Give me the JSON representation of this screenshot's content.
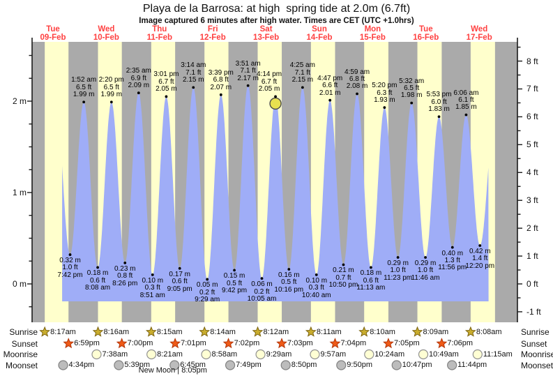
{
  "colors": {
    "day_band": "#ffffcc",
    "night_band": "#aaaaaa",
    "tide_fill": "#9fadf7",
    "axis": "#1a1a1a",
    "day_label_red": "#ff4040",
    "current_marker_fill": "#e8e050",
    "current_marker_stroke": "#4a4a4a",
    "sunrise_star_fill": "#c9ad2e",
    "sunrise_star_stroke": "#7c6410",
    "sunset_star_fill": "#ef5a17",
    "sunset_star_stroke": "#b23408",
    "moonrise_fill": "#ffffd4",
    "moonrise_stroke": "#909090",
    "moonset_fill": "#bcbcbc",
    "moonset_stroke": "#808080"
  },
  "chart_data": {
    "type": "area",
    "title": "Playa de la Barrosa: at high  spring tide at 2.0m (6.7ft)",
    "subtitle": "Image captured 6 minutes after high water. Times are CET (UTC +1.0hrs)",
    "ylabel_left_unit": "m",
    "ylabel_right_unit": "ft",
    "ylim_m": [
      -0.28,
      2.65
    ],
    "y_ticks_m": [
      "2 m",
      "1 m",
      "0 m"
    ],
    "y_tick_values_m": [
      2,
      1,
      0
    ],
    "y_ticks_ft": [
      "8 ft",
      "7 ft",
      "6 ft",
      "5 ft",
      "4 ft",
      "3 ft",
      "2 ft",
      "1 ft",
      "0 ft",
      "-1 ft"
    ],
    "y_tick_values_ft": [
      8,
      7,
      6,
      5,
      4,
      3,
      2,
      1,
      0,
      -1
    ],
    "days": [
      {
        "name": "Tue",
        "date": "09-Feb"
      },
      {
        "name": "Wed",
        "date": "10-Feb"
      },
      {
        "name": "Thu",
        "date": "11-Feb"
      },
      {
        "name": "Fri",
        "date": "12-Feb"
      },
      {
        "name": "Sat",
        "date": "13-Feb"
      },
      {
        "name": "Sun",
        "date": "14-Feb"
      },
      {
        "name": "Mon",
        "date": "15-Feb"
      },
      {
        "name": "Tue",
        "date": "16-Feb"
      },
      {
        "name": "Wed",
        "date": "17-Feb"
      }
    ],
    "events": [
      {
        "kind": "low",
        "time": "7:42 pm",
        "m": "0.32 m",
        "ft": "1.0 ft",
        "t": 19.7,
        "h": 0.32
      },
      {
        "kind": "high",
        "time": "1:52 am",
        "m": "1.99 m",
        "ft": "6.5 ft",
        "t": 25.87,
        "h": 1.99
      },
      {
        "kind": "low",
        "time": "8:08 am",
        "m": "0.18 m",
        "ft": "0.6 ft",
        "t": 32.13,
        "h": 0.18
      },
      {
        "kind": "high",
        "time": "2:20 pm",
        "m": "1.99 m",
        "ft": "6.5 ft",
        "t": 38.33,
        "h": 1.99
      },
      {
        "kind": "low",
        "time": "8:26 pm",
        "m": "0.23 m",
        "ft": "0.8 ft",
        "t": 44.43,
        "h": 0.23
      },
      {
        "kind": "high",
        "time": "2:35 am",
        "m": "2.09 m",
        "ft": "6.9 ft",
        "t": 50.58,
        "h": 2.09
      },
      {
        "kind": "low",
        "time": "8:51 am",
        "m": "0.10 m",
        "ft": "0.3 ft",
        "t": 56.85,
        "h": 0.1
      },
      {
        "kind": "high",
        "time": "3:01 pm",
        "m": "2.05 m",
        "ft": "6.7 ft",
        "t": 63.02,
        "h": 2.05
      },
      {
        "kind": "low",
        "time": "9:05 pm",
        "m": "0.17 m",
        "ft": "0.6 ft",
        "t": 69.08,
        "h": 0.17
      },
      {
        "kind": "high",
        "time": "3:14 am",
        "m": "2.15 m",
        "ft": "7.1 ft",
        "t": 75.23,
        "h": 2.15
      },
      {
        "kind": "low",
        "time": "9:29 am",
        "m": "0.05 m",
        "ft": "0.2 ft",
        "t": 81.48,
        "h": 0.05
      },
      {
        "kind": "high",
        "time": "3:39 pm",
        "m": "2.07 m",
        "ft": "6.8 ft",
        "t": 87.65,
        "h": 2.07
      },
      {
        "kind": "low",
        "time": "9:42 pm",
        "m": "0.15 m",
        "ft": "0.5 ft",
        "t": 93.7,
        "h": 0.15
      },
      {
        "kind": "high",
        "time": "3:51 am",
        "m": "2.17 m",
        "ft": "7.1 ft",
        "t": 99.85,
        "h": 2.17
      },
      {
        "kind": "low",
        "time": "10:05 am",
        "m": "0.06 m",
        "ft": "0.2 ft",
        "t": 106.08,
        "h": 0.06
      },
      {
        "kind": "high",
        "time": "4:14 pm",
        "m": "2.05 m",
        "ft": "6.7 ft",
        "t": 112.23,
        "h": 2.05,
        "current": true
      },
      {
        "kind": "low",
        "time": "10:16 pm",
        "m": "0.16 m",
        "ft": "0.5 ft",
        "t": 118.27,
        "h": 0.16
      },
      {
        "kind": "high",
        "time": "4:25 am",
        "m": "2.15 m",
        "ft": "7.1 ft",
        "t": 124.42,
        "h": 2.15
      },
      {
        "kind": "low",
        "time": "10:40 am",
        "m": "0.10 m",
        "ft": "0.3 ft",
        "t": 130.67,
        "h": 0.1
      },
      {
        "kind": "high",
        "time": "4:47 pm",
        "m": "2.01 m",
        "ft": "6.6 ft",
        "t": 136.78,
        "h": 2.01
      },
      {
        "kind": "low",
        "time": "10:50 pm",
        "m": "0.21 m",
        "ft": "0.7 ft",
        "t": 142.83,
        "h": 0.21
      },
      {
        "kind": "high",
        "time": "4:59 am",
        "m": "2.08 m",
        "ft": "6.8 ft",
        "t": 148.98,
        "h": 2.08
      },
      {
        "kind": "low",
        "time": "11:13 am",
        "m": "0.18 m",
        "ft": "0.6 ft",
        "t": 155.22,
        "h": 0.18
      },
      {
        "kind": "high",
        "time": "5:20 pm",
        "m": "1.93 m",
        "ft": "6.3 ft",
        "t": 161.33,
        "h": 1.93
      },
      {
        "kind": "low",
        "time": "11:23 pm",
        "m": "0.29 m",
        "ft": "1.0 ft",
        "t": 167.38,
        "h": 0.29
      },
      {
        "kind": "high",
        "time": "5:32 am",
        "m": "1.98 m",
        "ft": "6.5 ft",
        "t": 173.53,
        "h": 1.98
      },
      {
        "kind": "low",
        "time": "11:46 am",
        "m": "0.29 m",
        "ft": "1.0 ft",
        "t": 179.77,
        "h": 0.29
      },
      {
        "kind": "high",
        "time": "5:53 pm",
        "m": "1.83 m",
        "ft": "6.0 ft",
        "t": 185.88,
        "h": 1.83
      },
      {
        "kind": "low",
        "time": "11:56 pm",
        "m": "0.40 m",
        "ft": "1.3 ft",
        "t": 191.93,
        "h": 0.4
      },
      {
        "kind": "high",
        "time": "6:06 am",
        "m": "1.85 m",
        "ft": "6.1 ft",
        "t": 198.1,
        "h": 1.85
      },
      {
        "kind": "low",
        "time": "12:20 pm",
        "m": "0.42 m",
        "ft": "1.4 ft",
        "t": 204.33,
        "h": 0.42
      }
    ]
  },
  "astro": {
    "sunrise": {
      "label": "Sunrise",
      "start_day": 0,
      "times": [
        "8:17am",
        "8:16am",
        "8:15am",
        "8:14am",
        "8:12am",
        "8:11am",
        "8:10am",
        "8:09am",
        "8:08am"
      ]
    },
    "sunset": {
      "label": "Sunset",
      "start_day": 0,
      "times": [
        "6:59pm",
        "7:00pm",
        "7:01pm",
        "7:02pm",
        "7:03pm",
        "7:04pm",
        "7:05pm",
        "7:06pm"
      ]
    },
    "moonrise": {
      "label": "Moonrise",
      "start_day": 1,
      "times": [
        "7:38am",
        "8:21am",
        "8:58am",
        "9:29am",
        "9:57am",
        "10:24am",
        "10:49am",
        "11:15am"
      ]
    },
    "moonset": {
      "label": "Moonset",
      "start_day": 0,
      "times": [
        "4:34pm",
        "5:39pm",
        "6:45pm",
        "7:49pm",
        "8:50pm",
        "9:50pm",
        "10:47pm",
        "11:44pm"
      ]
    },
    "new_moon": {
      "label": "New Moon | 8:05pm",
      "day": 2
    }
  }
}
